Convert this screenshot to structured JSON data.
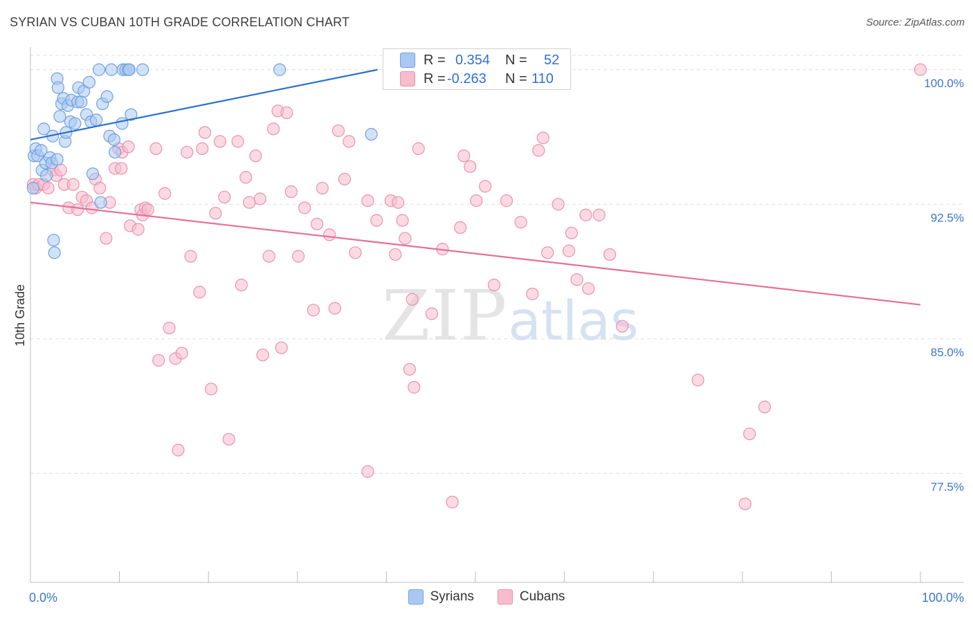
{
  "header": {
    "title": "SYRIAN VS CUBAN 10TH GRADE CORRELATION CHART",
    "source": "Source: ZipAtlas.com"
  },
  "watermark": {
    "zip": "ZIP",
    "atlas": "atlas"
  },
  "colors": {
    "syrian_fill": "#a9c9f2",
    "syrian_stroke": "#6fa0e0",
    "syrian_line": "#2a6fd0",
    "cuban_fill": "#f7bccd",
    "cuban_stroke": "#ea91ad",
    "cuban_line": "#e56f98",
    "axis_text": "#3c76c9",
    "grid": "#dddddd"
  },
  "stats": {
    "syrian": {
      "r_label": "R =",
      "r_value": "0.354",
      "n_label": "N =",
      "n_value": "52"
    },
    "cuban": {
      "r_label": "R =",
      "r_value": "-0.263",
      "n_label": "N =",
      "n_value": "110"
    }
  },
  "legend": {
    "syrians": "Syrians",
    "cubans": "Cubans"
  },
  "chart_data": {
    "type": "scatter",
    "title": "SYRIAN VS CUBAN 10TH GRADE CORRELATION CHART",
    "xlabel": "",
    "ylabel": "10th Grade",
    "xlim": [
      0,
      100
    ],
    "ylim": [
      71.5,
      100.8
    ],
    "x_tick_labels": [
      "0.0%",
      "100.0%"
    ],
    "y_ticks": [
      77.5,
      85.0,
      92.5,
      100.0
    ],
    "y_tick_labels": [
      "77.5%",
      "85.0%",
      "92.5%",
      "100.0%"
    ],
    "grid": true,
    "series": [
      {
        "name": "Syrians",
        "trendline": {
          "x": [
            0,
            39
          ],
          "y": [
            96.1,
            100
          ]
        },
        "points": [
          [
            0.3,
            93.4
          ],
          [
            0.4,
            95.2
          ],
          [
            0.6,
            95.6
          ],
          [
            0.8,
            95.2
          ],
          [
            1.2,
            95.5
          ],
          [
            1.3,
            94.4
          ],
          [
            1.5,
            96.7
          ],
          [
            1.7,
            94.8
          ],
          [
            1.8,
            94.1
          ],
          [
            2.2,
            95.1
          ],
          [
            2.4,
            94.8
          ],
          [
            2.5,
            96.3
          ],
          [
            2.6,
            90.5
          ],
          [
            2.7,
            89.8
          ],
          [
            3.0,
            95.0
          ],
          [
            3.0,
            99.5
          ],
          [
            3.1,
            99.0
          ],
          [
            3.3,
            97.4
          ],
          [
            3.5,
            98.1
          ],
          [
            3.7,
            98.4
          ],
          [
            3.9,
            96.0
          ],
          [
            4.0,
            96.5
          ],
          [
            4.2,
            98.0
          ],
          [
            4.5,
            97.1
          ],
          [
            4.6,
            98.3
          ],
          [
            5.0,
            97.0
          ],
          [
            5.3,
            98.2
          ],
          [
            5.4,
            99.0
          ],
          [
            5.7,
            98.2
          ],
          [
            6.0,
            98.8
          ],
          [
            6.3,
            97.5
          ],
          [
            6.6,
            99.3
          ],
          [
            6.8,
            97.1
          ],
          [
            7.0,
            94.2
          ],
          [
            7.4,
            97.2
          ],
          [
            7.7,
            100.0
          ],
          [
            7.9,
            92.6
          ],
          [
            8.1,
            98.1
          ],
          [
            8.6,
            98.5
          ],
          [
            8.9,
            96.3
          ],
          [
            9.1,
            100.0
          ],
          [
            9.4,
            96.1
          ],
          [
            9.5,
            95.4
          ],
          [
            10.4,
            100.0
          ],
          [
            10.3,
            97.0
          ],
          [
            10.7,
            100.0
          ],
          [
            11.0,
            100.0
          ],
          [
            11.1,
            100.0
          ],
          [
            11.3,
            97.5
          ],
          [
            12.6,
            100.0
          ],
          [
            28.0,
            100.0
          ],
          [
            38.3,
            96.4
          ]
        ]
      },
      {
        "name": "Cubans",
        "trendline": {
          "x": [
            0,
            100
          ],
          "y": [
            92.6,
            86.9
          ]
        },
        "points": [
          [
            0.3,
            93.6
          ],
          [
            0.6,
            93.4
          ],
          [
            0.9,
            93.6
          ],
          [
            1.5,
            93.6
          ],
          [
            2.0,
            93.4
          ],
          [
            2.5,
            94.4
          ],
          [
            2.9,
            94.1
          ],
          [
            3.4,
            94.4
          ],
          [
            3.8,
            93.6
          ],
          [
            4.3,
            92.3
          ],
          [
            4.8,
            93.6
          ],
          [
            5.3,
            92.2
          ],
          [
            5.8,
            92.9
          ],
          [
            6.3,
            92.7
          ],
          [
            6.9,
            92.3
          ],
          [
            7.3,
            93.9
          ],
          [
            7.8,
            93.4
          ],
          [
            8.5,
            90.6
          ],
          [
            8.9,
            92.6
          ],
          [
            9.5,
            94.5
          ],
          [
            9.9,
            95.6
          ],
          [
            10.2,
            94.5
          ],
          [
            10.3,
            95.4
          ],
          [
            11.0,
            95.7
          ],
          [
            11.2,
            91.3
          ],
          [
            12.1,
            91.1
          ],
          [
            12.4,
            92.2
          ],
          [
            12.6,
            91.9
          ],
          [
            12.9,
            92.3
          ],
          [
            13.2,
            92.2
          ],
          [
            14.1,
            95.6
          ],
          [
            14.4,
            83.8
          ],
          [
            15.1,
            93.1
          ],
          [
            15.6,
            85.6
          ],
          [
            16.3,
            83.9
          ],
          [
            16.6,
            78.8
          ],
          [
            17.0,
            84.2
          ],
          [
            17.6,
            95.4
          ],
          [
            18.0,
            89.6
          ],
          [
            19.0,
            87.6
          ],
          [
            19.3,
            95.6
          ],
          [
            19.6,
            96.5
          ],
          [
            20.3,
            82.2
          ],
          [
            20.8,
            92.0
          ],
          [
            21.3,
            96.0
          ],
          [
            21.8,
            92.9
          ],
          [
            22.3,
            79.4
          ],
          [
            23.3,
            96.0
          ],
          [
            23.7,
            88.0
          ],
          [
            24.2,
            94.0
          ],
          [
            24.6,
            92.6
          ],
          [
            25.3,
            95.2
          ],
          [
            25.8,
            92.8
          ],
          [
            26.1,
            84.1
          ],
          [
            26.8,
            89.6
          ],
          [
            27.3,
            96.7
          ],
          [
            27.8,
            97.7
          ],
          [
            28.2,
            84.5
          ],
          [
            28.8,
            97.6
          ],
          [
            29.3,
            93.2
          ],
          [
            30.1,
            89.6
          ],
          [
            30.8,
            92.3
          ],
          [
            31.8,
            86.6
          ],
          [
            32.2,
            91.4
          ],
          [
            32.8,
            93.4
          ],
          [
            33.6,
            90.8
          ],
          [
            34.2,
            86.7
          ],
          [
            34.6,
            96.6
          ],
          [
            35.3,
            93.9
          ],
          [
            35.8,
            96.0
          ],
          [
            36.5,
            89.8
          ],
          [
            37.9,
            92.7
          ],
          [
            37.9,
            77.6
          ],
          [
            38.9,
            91.6
          ],
          [
            40.5,
            92.7
          ],
          [
            41.0,
            89.7
          ],
          [
            41.3,
            92.6
          ],
          [
            41.8,
            91.6
          ],
          [
            42.1,
            90.6
          ],
          [
            42.6,
            83.3
          ],
          [
            42.9,
            87.2
          ],
          [
            43.1,
            82.3
          ],
          [
            43.6,
            95.6
          ],
          [
            45.1,
            86.4
          ],
          [
            46.3,
            90.0
          ],
          [
            47.4,
            75.9
          ],
          [
            48.3,
            91.2
          ],
          [
            48.7,
            95.2
          ],
          [
            49.4,
            94.6
          ],
          [
            50.1,
            92.7
          ],
          [
            51.1,
            93.5
          ],
          [
            52.1,
            88.0
          ],
          [
            53.5,
            92.7
          ],
          [
            55.1,
            91.5
          ],
          [
            56.4,
            87.5
          ],
          [
            57.1,
            95.5
          ],
          [
            57.6,
            96.2
          ],
          [
            58.1,
            89.8
          ],
          [
            59.3,
            92.5
          ],
          [
            60.5,
            89.9
          ],
          [
            60.8,
            90.9
          ],
          [
            61.4,
            88.3
          ],
          [
            62.4,
            91.9
          ],
          [
            62.7,
            87.8
          ],
          [
            63.9,
            91.9
          ],
          [
            65.1,
            89.7
          ],
          [
            66.5,
            85.7
          ],
          [
            75.0,
            82.7
          ],
          [
            80.3,
            75.8
          ],
          [
            80.8,
            79.7
          ],
          [
            82.5,
            81.2
          ],
          [
            100.0,
            100.0
          ]
        ]
      }
    ]
  }
}
